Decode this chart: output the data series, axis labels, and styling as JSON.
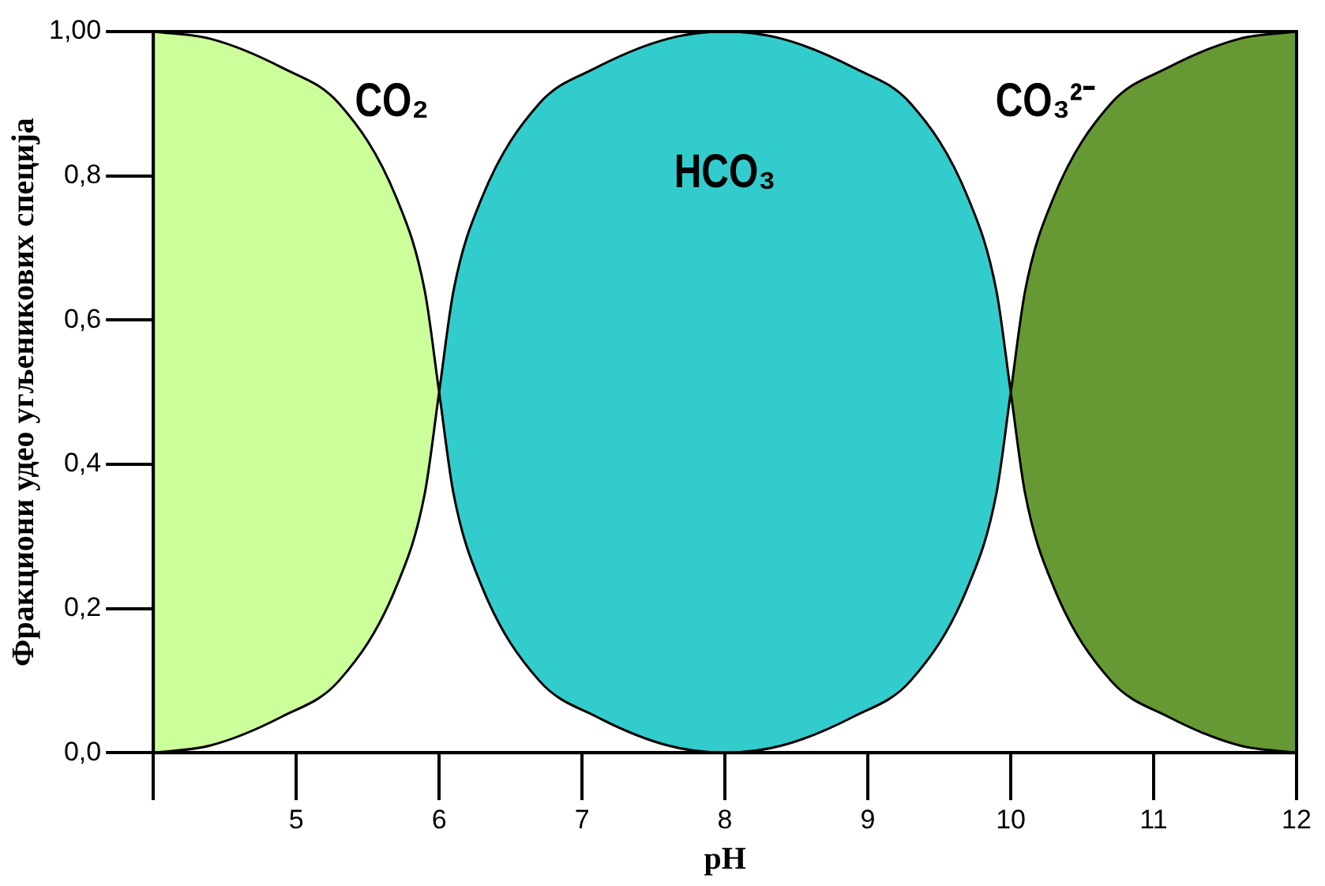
{
  "chart_data": {
    "type": "area",
    "xlabel": "pH",
    "ylabel": "Фракциони удео угљеникових специја",
    "xlim": [
      4,
      12
    ],
    "xticks": [
      {
        "value": 4,
        "label": null
      },
      5,
      6,
      7,
      8,
      9,
      10,
      11,
      12
    ],
    "ylim": [
      0,
      1
    ],
    "yticks": [
      {
        "value": 0,
        "label": "0,0"
      },
      {
        "value": 0.2,
        "label": "0,2"
      },
      {
        "value": 0.4,
        "label": "0,4"
      },
      {
        "value": 0.6,
        "label": "0,6"
      },
      {
        "value": 0.8,
        "label": "0,8"
      },
      {
        "value": 1,
        "label": "1,00"
      }
    ],
    "grid": false,
    "legend": false,
    "series": [
      {
        "type": "line",
        "color": "#000000",
        "x": [
          4,
          4.4,
          4.9,
          5.3,
          5.7,
          5.9,
          6
        ],
        "values": [
          0.0,
          0.01,
          0.05,
          0.1,
          0.23,
          0.36,
          0.5
        ]
      },
      {
        "name": "CO₂",
        "color": "#ccff99",
        "x": [
          4,
          4.4,
          4.9,
          5.3,
          5.7,
          5.9,
          6
        ],
        "values": [
          1.0,
          0.99,
          0.95,
          0.9,
          0.77,
          0.64,
          0.5
        ]
      },
      {
        "type": "line",
        "color": "#000000",
        "x": [
          6,
          6.1,
          6.3,
          6.7,
          7.1,
          7.6,
          8,
          8.4,
          8.9,
          9.3,
          9.7,
          9.9,
          10
        ],
        "values": [
          0.5,
          0.36,
          0.23,
          0.1,
          0.05,
          0.01,
          0.0,
          0.01,
          0.05,
          0.1,
          0.23,
          0.36,
          0.5
        ]
      },
      {
        "name": "HCO₃",
        "color": "#33cccc",
        "x": [
          6,
          6.1,
          6.3,
          6.7,
          7.1,
          7.6,
          8,
          8.4,
          8.9,
          9.3,
          9.7,
          9.9,
          10
        ],
        "values": [
          0.5,
          0.64,
          0.77,
          0.9,
          0.95,
          0.99,
          1.0,
          0.99,
          0.95,
          0.9,
          0.77,
          0.64,
          0.5
        ]
      },
      {
        "type": "line",
        "color": "#000000",
        "x": [
          10,
          10.1,
          10.3,
          10.7,
          11.1,
          11.6,
          12
        ],
        "values": [
          0.5,
          0.36,
          0.23,
          0.1,
          0.05,
          0.01,
          0.0
        ]
      },
      {
        "name": "CO₃²⁻",
        "color": "#669933",
        "x": [
          10,
          10.1,
          10.3,
          10.7,
          11.1,
          11.6,
          12
        ],
        "values": [
          0.5,
          0.64,
          0.77,
          0.9,
          0.95,
          0.99,
          1.0
        ]
      }
    ]
  }
}
